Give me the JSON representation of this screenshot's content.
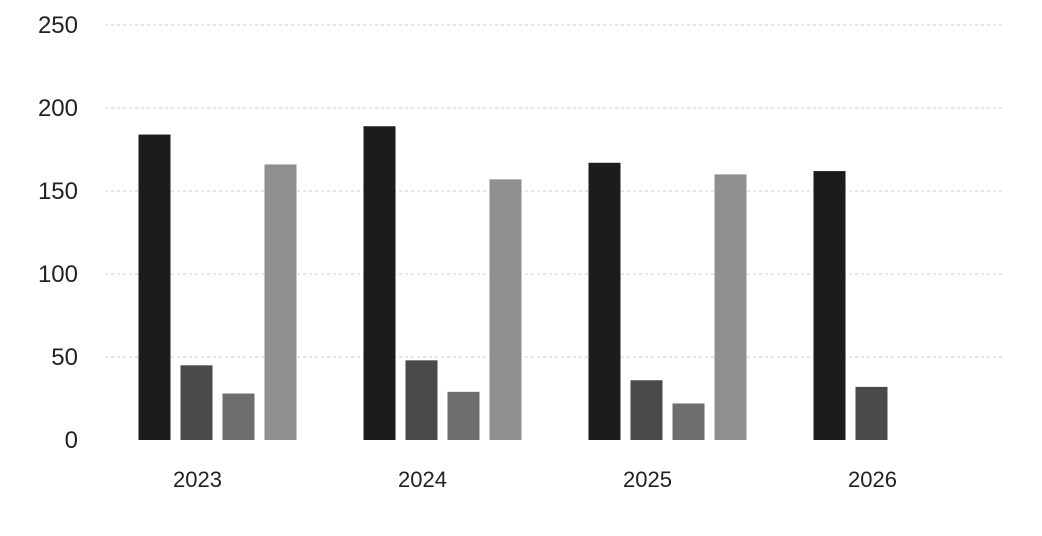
{
  "chart_data": {
    "type": "bar",
    "categories": [
      "2023",
      "2024",
      "2025",
      "2026"
    ],
    "series": [
      {
        "values": [
          184,
          189,
          167,
          162
        ],
        "color": "#1c1c1c"
      },
      {
        "values": [
          45,
          48,
          36,
          32
        ],
        "color": "#4a4a4a"
      },
      {
        "values": [
          28,
          29,
          22,
          null
        ],
        "color": "#6e6e6e"
      },
      {
        "values": [
          166,
          157,
          160,
          null
        ],
        "color": "#8f8f8f"
      }
    ],
    "y_ticks": [
      "0",
      "50",
      "100",
      "150",
      "200",
      "250"
    ],
    "ylim": [
      0,
      250
    ],
    "grid": true,
    "legend": false,
    "title": "",
    "xlabel": "",
    "ylabel": ""
  }
}
